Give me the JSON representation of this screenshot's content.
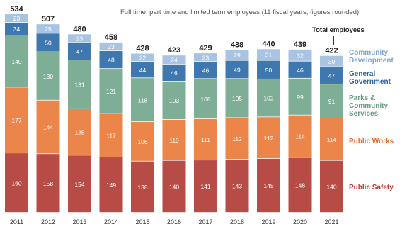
{
  "subtitle": "Full time, part time and limited term employees (11 fiscal years, figures rounded)",
  "total_label": "Total employees",
  "colors": {
    "public_safety": "#b74b45",
    "public_works": "#ec8549",
    "parks": "#7fae96",
    "general_government": "#3f78ae",
    "community_development": "#a9c4e2",
    "legend_public_safety": "#c23a34",
    "legend_public_works": "#e76b2c",
    "legend_parks": "#6a9c84",
    "legend_general_government": "#2f64a0",
    "legend_community_development": "#7fa6d3",
    "segment_label": "#ffffff",
    "total_text": "#222222",
    "axis_text": "#333333"
  },
  "chart_data": {
    "type": "bar",
    "stacked": true,
    "categories": [
      "2011",
      "2012",
      "2013",
      "2014",
      "2015",
      "2016",
      "2017",
      "2018",
      "2019",
      "2020",
      "2021"
    ],
    "series": [
      {
        "key": "public_safety",
        "name": "Public Safety",
        "values": [
          160,
          158,
          154,
          149,
          138,
          140,
          141,
          143,
          145,
          148,
          140
        ]
      },
      {
        "key": "public_works",
        "name": "Public Works",
        "values": [
          177,
          144,
          125,
          117,
          106,
          110,
          111,
          112,
          112,
          114,
          114
        ]
      },
      {
        "key": "parks",
        "name": "Parks & Community Services",
        "values": [
          140,
          130,
          131,
          121,
          118,
          103,
          108,
          105,
          102,
          99,
          91
        ]
      },
      {
        "key": "general_government",
        "name": "General Government",
        "values": [
          34,
          50,
          47,
          48,
          44,
          46,
          46,
          49,
          50,
          46,
          47
        ]
      },
      {
        "key": "community_development",
        "name": "Community Development",
        "values": [
          23,
          25,
          23,
          23,
          22,
          24,
          23,
          29,
          31,
          32,
          30
        ]
      }
    ],
    "totals": [
      534,
      507,
      480,
      458,
      428,
      423,
      429,
      438,
      440,
      439,
      422
    ],
    "ylim": [
      0,
      534
    ],
    "legend_placement": "right",
    "grid": false
  },
  "legend": {
    "community_development": "Community\nDevelopment",
    "general_government": "General\nGovernment",
    "parks": "Parks &\nCommunity\nServices",
    "public_works": "Public Works",
    "public_safety": "Public Safety"
  }
}
